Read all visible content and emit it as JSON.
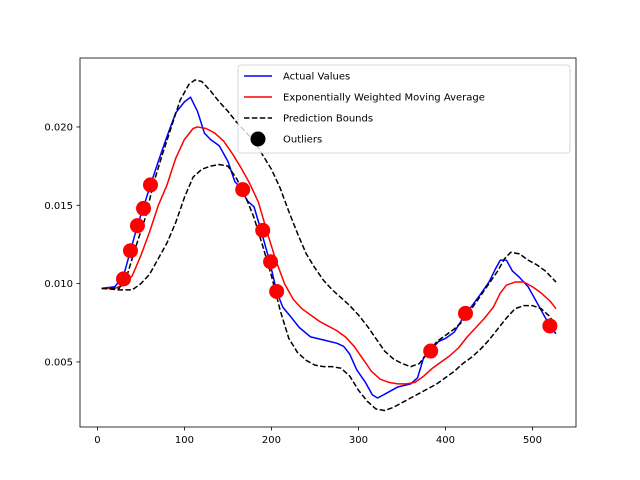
{
  "chart_data": {
    "type": "line",
    "title": "",
    "xlabel": "",
    "ylabel": "",
    "xlim": [
      -20,
      550
    ],
    "ylim": [
      0.00085,
      0.0244
    ],
    "grid": false,
    "legend_position": "top-right",
    "x_ticks": [
      0,
      100,
      200,
      300,
      400,
      500
    ],
    "x_tick_labels": [
      "0",
      "100",
      "200",
      "300",
      "400",
      "500"
    ],
    "y_ticks": [
      0.005,
      0.01,
      0.015,
      0.02
    ],
    "y_tick_labels": [
      "0.005",
      "0.010",
      "0.015",
      "0.020"
    ],
    "colors": {
      "actual": "#0000ff",
      "ewma": "#ff0000",
      "bounds": "#000000",
      "outliers": "#ff0000"
    },
    "legend": [
      {
        "label": "Actual Values",
        "style": "line",
        "series": "actual"
      },
      {
        "label": "Exponentially Weighted Moving Average",
        "style": "line",
        "series": "ewma"
      },
      {
        "label": "Prediction Bounds",
        "style": "dashed",
        "series": "bounds"
      },
      {
        "label": "Outliers",
        "style": "marker",
        "series": "outliers"
      }
    ],
    "series": [
      {
        "key": "actual",
        "points": [
          [
            5,
            0.0097
          ],
          [
            20,
            0.0098
          ],
          [
            30,
            0.0105
          ],
          [
            38,
            0.0121
          ],
          [
            46,
            0.0137
          ],
          [
            53,
            0.0149
          ],
          [
            61,
            0.0163
          ],
          [
            70,
            0.0178
          ],
          [
            80,
            0.0194
          ],
          [
            90,
            0.0209
          ],
          [
            100,
            0.0216
          ],
          [
            107,
            0.0219
          ],
          [
            115,
            0.021
          ],
          [
            123,
            0.0196
          ],
          [
            130,
            0.0192
          ],
          [
            140,
            0.0188
          ],
          [
            150,
            0.0178
          ],
          [
            158,
            0.0165
          ],
          [
            165,
            0.0161
          ],
          [
            172,
            0.0153
          ],
          [
            180,
            0.0149
          ],
          [
            188,
            0.0134
          ],
          [
            198,
            0.0114
          ],
          [
            206,
            0.0095
          ],
          [
            213,
            0.0085
          ],
          [
            222,
            0.0079
          ],
          [
            232,
            0.0072
          ],
          [
            245,
            0.0066
          ],
          [
            260,
            0.0064
          ],
          [
            275,
            0.0062
          ],
          [
            283,
            0.006
          ],
          [
            290,
            0.0055
          ],
          [
            298,
            0.0045
          ],
          [
            308,
            0.0037
          ],
          [
            316,
            0.0029
          ],
          [
            322,
            0.0027
          ],
          [
            332,
            0.003
          ],
          [
            345,
            0.0034
          ],
          [
            360,
            0.0036
          ],
          [
            368,
            0.004
          ],
          [
            375,
            0.0053
          ],
          [
            382,
            0.0057
          ],
          [
            392,
            0.0063
          ],
          [
            400,
            0.0065
          ],
          [
            410,
            0.0069
          ],
          [
            420,
            0.0078
          ],
          [
            428,
            0.0084
          ],
          [
            440,
            0.0093
          ],
          [
            450,
            0.0101
          ],
          [
            458,
            0.011
          ],
          [
            463,
            0.0115
          ],
          [
            470,
            0.0115
          ],
          [
            477,
            0.0108
          ],
          [
            485,
            0.0104
          ],
          [
            495,
            0.0098
          ],
          [
            503,
            0.009
          ],
          [
            513,
            0.008
          ],
          [
            520,
            0.0073
          ],
          [
            527,
            0.0068
          ]
        ]
      },
      {
        "key": "ewma",
        "points": [
          [
            5,
            0.0097
          ],
          [
            20,
            0.0097
          ],
          [
            30,
            0.0099
          ],
          [
            40,
            0.0105
          ],
          [
            50,
            0.0118
          ],
          [
            60,
            0.0133
          ],
          [
            70,
            0.015
          ],
          [
            80,
            0.0163
          ],
          [
            90,
            0.018
          ],
          [
            100,
            0.0192
          ],
          [
            110,
            0.0199
          ],
          [
            115,
            0.02
          ],
          [
            125,
            0.0199
          ],
          [
            135,
            0.0196
          ],
          [
            145,
            0.0191
          ],
          [
            155,
            0.0183
          ],
          [
            165,
            0.0174
          ],
          [
            175,
            0.0164
          ],
          [
            185,
            0.0152
          ],
          [
            195,
            0.0133
          ],
          [
            205,
            0.0115
          ],
          [
            215,
            0.01
          ],
          [
            225,
            0.009
          ],
          [
            235,
            0.0084
          ],
          [
            245,
            0.008
          ],
          [
            255,
            0.0076
          ],
          [
            265,
            0.0073
          ],
          [
            275,
            0.007
          ],
          [
            285,
            0.0066
          ],
          [
            295,
            0.006
          ],
          [
            305,
            0.0052
          ],
          [
            315,
            0.0044
          ],
          [
            325,
            0.0039
          ],
          [
            335,
            0.0037
          ],
          [
            345,
            0.0036
          ],
          [
            355,
            0.0036
          ],
          [
            365,
            0.0037
          ],
          [
            375,
            0.0041
          ],
          [
            385,
            0.0046
          ],
          [
            395,
            0.005
          ],
          [
            405,
            0.0054
          ],
          [
            415,
            0.0059
          ],
          [
            425,
            0.0066
          ],
          [
            435,
            0.0072
          ],
          [
            445,
            0.0078
          ],
          [
            455,
            0.0085
          ],
          [
            463,
            0.0094
          ],
          [
            470,
            0.0099
          ],
          [
            480,
            0.0101
          ],
          [
            490,
            0.0101
          ],
          [
            500,
            0.0098
          ],
          [
            510,
            0.0094
          ],
          [
            520,
            0.0089
          ],
          [
            527,
            0.0084
          ]
        ]
      },
      {
        "key": "upper_bound",
        "points": [
          [
            5,
            0.0097
          ],
          [
            25,
            0.0097
          ],
          [
            35,
            0.0107
          ],
          [
            45,
            0.0125
          ],
          [
            55,
            0.0142
          ],
          [
            65,
            0.0165
          ],
          [
            75,
            0.0183
          ],
          [
            85,
            0.02
          ],
          [
            95,
            0.0217
          ],
          [
            105,
            0.0227
          ],
          [
            112,
            0.023
          ],
          [
            120,
            0.0229
          ],
          [
            130,
            0.0223
          ],
          [
            140,
            0.0216
          ],
          [
            150,
            0.021
          ],
          [
            160,
            0.0203
          ],
          [
            170,
            0.0197
          ],
          [
            180,
            0.0191
          ],
          [
            190,
            0.0182
          ],
          [
            200,
            0.0173
          ],
          [
            210,
            0.0161
          ],
          [
            220,
            0.0146
          ],
          [
            230,
            0.0132
          ],
          [
            240,
            0.0119
          ],
          [
            250,
            0.011
          ],
          [
            260,
            0.0102
          ],
          [
            270,
            0.0096
          ],
          [
            280,
            0.0091
          ],
          [
            290,
            0.0086
          ],
          [
            300,
            0.008
          ],
          [
            310,
            0.0073
          ],
          [
            320,
            0.0065
          ],
          [
            330,
            0.0057
          ],
          [
            340,
            0.0052
          ],
          [
            350,
            0.0049
          ],
          [
            360,
            0.0047
          ],
          [
            370,
            0.0049
          ],
          [
            380,
            0.0056
          ],
          [
            390,
            0.0063
          ],
          [
            400,
            0.0067
          ],
          [
            410,
            0.0071
          ],
          [
            420,
            0.0076
          ],
          [
            430,
            0.0084
          ],
          [
            440,
            0.0092
          ],
          [
            450,
            0.01
          ],
          [
            460,
            0.0108
          ],
          [
            468,
            0.0116
          ],
          [
            475,
            0.012
          ],
          [
            485,
            0.0119
          ],
          [
            495,
            0.0115
          ],
          [
            505,
            0.0112
          ],
          [
            515,
            0.0108
          ],
          [
            527,
            0.0101
          ]
        ]
      },
      {
        "key": "lower_bound",
        "points": [
          [
            5,
            0.0097
          ],
          [
            25,
            0.0096
          ],
          [
            40,
            0.0096
          ],
          [
            50,
            0.01
          ],
          [
            60,
            0.0106
          ],
          [
            70,
            0.0116
          ],
          [
            80,
            0.0126
          ],
          [
            90,
            0.0139
          ],
          [
            100,
            0.0155
          ],
          [
            110,
            0.0168
          ],
          [
            120,
            0.0173
          ],
          [
            130,
            0.0175
          ],
          [
            140,
            0.0176
          ],
          [
            150,
            0.0175
          ],
          [
            160,
            0.0167
          ],
          [
            170,
            0.0156
          ],
          [
            180,
            0.0142
          ],
          [
            190,
            0.0124
          ],
          [
            200,
            0.0105
          ],
          [
            210,
            0.0083
          ],
          [
            220,
            0.0065
          ],
          [
            230,
            0.0056
          ],
          [
            240,
            0.0051
          ],
          [
            250,
            0.0048
          ],
          [
            260,
            0.0047
          ],
          [
            270,
            0.0047
          ],
          [
            280,
            0.0046
          ],
          [
            290,
            0.0041
          ],
          [
            300,
            0.0032
          ],
          [
            310,
            0.0025
          ],
          [
            320,
            0.002
          ],
          [
            330,
            0.0019
          ],
          [
            340,
            0.0021
          ],
          [
            350,
            0.0024
          ],
          [
            360,
            0.0027
          ],
          [
            370,
            0.003
          ],
          [
            380,
            0.0033
          ],
          [
            390,
            0.0036
          ],
          [
            400,
            0.004
          ],
          [
            410,
            0.0044
          ],
          [
            420,
            0.0049
          ],
          [
            430,
            0.0053
          ],
          [
            440,
            0.0058
          ],
          [
            450,
            0.0064
          ],
          [
            460,
            0.0071
          ],
          [
            470,
            0.0078
          ],
          [
            480,
            0.0084
          ],
          [
            490,
            0.0086
          ],
          [
            500,
            0.0086
          ],
          [
            510,
            0.0084
          ],
          [
            520,
            0.0079
          ],
          [
            527,
            0.0072
          ]
        ]
      }
    ],
    "outliers": [
      [
        30,
        0.0103
      ],
      [
        38,
        0.0121
      ],
      [
        46,
        0.0137
      ],
      [
        53,
        0.0148
      ],
      [
        61,
        0.0163
      ],
      [
        167,
        0.016
      ],
      [
        190,
        0.0134
      ],
      [
        199,
        0.0114
      ],
      [
        206,
        0.0095
      ],
      [
        383,
        0.0057
      ],
      [
        423,
        0.0081
      ],
      [
        520,
        0.0073
      ]
    ]
  }
}
